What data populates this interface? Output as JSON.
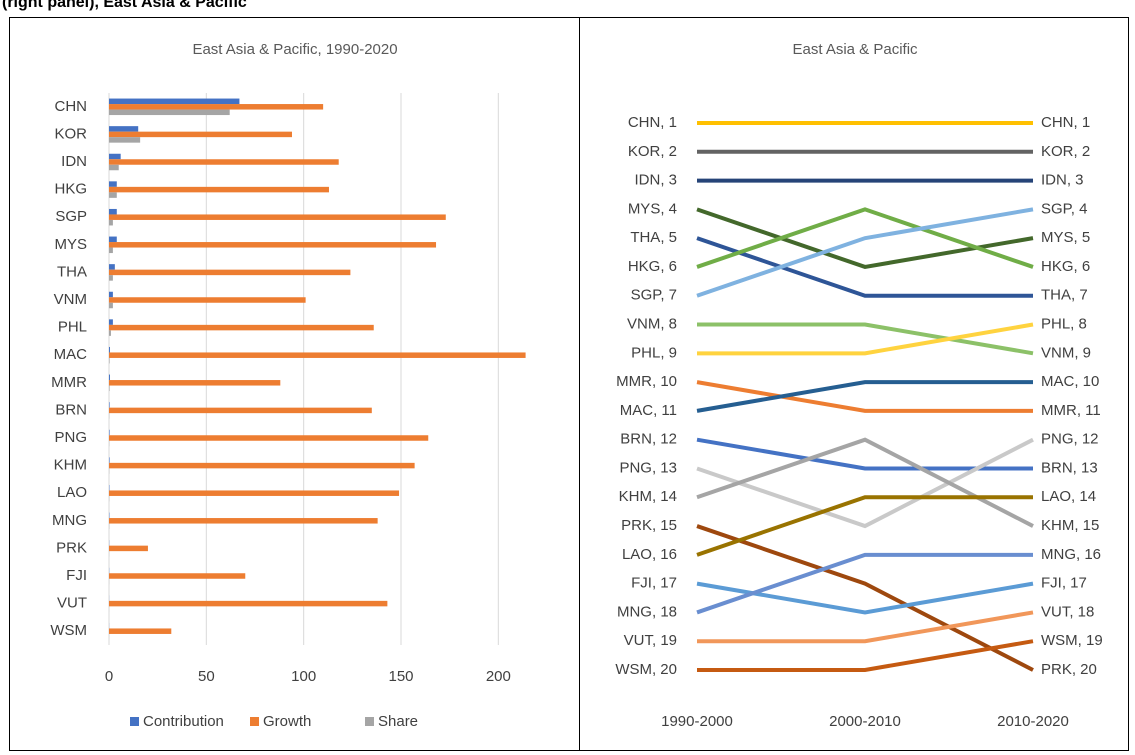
{
  "caption": "(right panel), East Asia & Pacific",
  "chart_data": [
    {
      "type": "bar",
      "orientation": "horizontal",
      "title": "East Asia & Pacific, 1990-2020",
      "categories": [
        "CHN",
        "KOR",
        "IDN",
        "HKG",
        "SGP",
        "MYS",
        "THA",
        "VNM",
        "PHL",
        "MAC",
        "MMR",
        "BRN",
        "PNG",
        "KHM",
        "LAO",
        "MNG",
        "PRK",
        "FJI",
        "VUT",
        "WSM"
      ],
      "series": [
        {
          "name": "Contribution",
          "color": "#4472C4",
          "values": [
            67,
            15,
            6,
            4,
            4,
            4,
            3,
            2,
            2,
            0.5,
            0.5,
            0.3,
            0.3,
            0.3,
            0.2,
            0.2,
            0.1,
            0.1,
            0.05,
            0.05
          ]
        },
        {
          "name": "Growth",
          "color": "#ED7D31",
          "values": [
            110,
            94,
            118,
            113,
            173,
            168,
            124,
            101,
            136,
            214,
            88,
            135,
            164,
            157,
            149,
            138,
            20,
            70,
            143,
            32
          ]
        },
        {
          "name": "Share",
          "color": "#A5A5A5",
          "values": [
            62,
            16,
            5,
            4,
            2,
            2,
            2,
            2,
            1,
            0.3,
            0.3,
            0.1,
            0.1,
            0.1,
            0.1,
            0.1,
            0.05,
            0.05,
            0.02,
            0.02
          ]
        }
      ],
      "xlim": [
        0,
        225
      ],
      "xticks": [
        0,
        50,
        100,
        150,
        200
      ],
      "grid": true,
      "legend": "bottom"
    },
    {
      "type": "line",
      "title": "East Asia & Pacific",
      "categories": [
        "1990-2000",
        "2000-2010",
        "2010-2020"
      ],
      "ylim": [
        1,
        20
      ],
      "y_inverted": true,
      "series": [
        {
          "color": "#FFC000",
          "values": [
            1,
            1,
            1
          ],
          "value_labels": [
            "CHN, 1",
            null,
            "CHN, 1"
          ]
        },
        {
          "color": "#636363",
          "values": [
            2,
            2,
            2
          ],
          "value_labels": [
            "KOR, 2",
            null,
            "KOR, 2"
          ]
        },
        {
          "color": "#264478",
          "values": [
            3,
            3,
            3
          ],
          "value_labels": [
            "IDN, 3",
            null,
            "IDN, 3"
          ]
        },
        {
          "color": "#43682B",
          "values": [
            4,
            6,
            5
          ],
          "value_labels": [
            "MYS, 4",
            null,
            "MYS, 5"
          ]
        },
        {
          "color": "#2E5597",
          "values": [
            5,
            7,
            7
          ],
          "value_labels": [
            "THA, 5",
            null,
            "THA, 7"
          ]
        },
        {
          "color": "#70AD47",
          "values": [
            6,
            4,
            6
          ],
          "value_labels": [
            "HKG, 6",
            null,
            "HKG, 6"
          ]
        },
        {
          "color": "#7FB2E0",
          "values": [
            7,
            5,
            4
          ],
          "value_labels": [
            "SGP, 7",
            null,
            "SGP, 4"
          ]
        },
        {
          "color": "#8CC168",
          "values": [
            8,
            8,
            9
          ],
          "value_labels": [
            "VNM, 8",
            null,
            "VNM, 9"
          ]
        },
        {
          "color": "#FFD33F",
          "values": [
            9,
            9,
            8
          ],
          "value_labels": [
            "PHL, 9",
            null,
            "PHL, 8"
          ]
        },
        {
          "color": "#ED7D31",
          "values": [
            10,
            11,
            11
          ],
          "value_labels": [
            "MMR, 10",
            null,
            "MMR, 11"
          ]
        },
        {
          "color": "#255E91",
          "values": [
            11,
            10,
            10
          ],
          "value_labels": [
            "MAC, 11",
            null,
            "MAC, 10"
          ]
        },
        {
          "color": "#4472C4",
          "values": [
            12,
            13,
            13
          ],
          "value_labels": [
            "BRN, 12",
            null,
            "BRN, 13"
          ]
        },
        {
          "color": "#C9C9C9",
          "values": [
            13,
            15,
            12
          ],
          "value_labels": [
            "PNG, 13",
            null,
            "PNG, 12"
          ]
        },
        {
          "color": "#A5A5A5",
          "values": [
            14,
            12,
            15
          ],
          "value_labels": [
            "KHM, 14",
            null,
            "KHM, 15"
          ]
        },
        {
          "color": "#9E480E",
          "values": [
            15,
            17,
            20
          ],
          "value_labels": [
            "PRK, 15",
            null,
            "PRK, 20"
          ]
        },
        {
          "color": "#997300",
          "values": [
            16,
            14,
            14
          ],
          "value_labels": [
            "LAO, 16",
            null,
            "LAO, 14"
          ]
        },
        {
          "color": "#5B9BD5",
          "values": [
            17,
            18,
            17
          ],
          "value_labels": [
            "FJI, 17",
            null,
            "FJI, 17"
          ]
        },
        {
          "color": "#698ED0",
          "values": [
            18,
            16,
            16
          ],
          "value_labels": [
            "MNG, 18",
            null,
            "MNG, 16"
          ]
        },
        {
          "color": "#F1975A",
          "values": [
            19,
            19,
            18
          ],
          "value_labels": [
            "VUT, 19",
            null,
            "VUT, 18"
          ]
        },
        {
          "color": "#C55A11",
          "values": [
            20,
            20,
            19
          ],
          "value_labels": [
            "WSM, 20",
            null,
            "WSM, 19"
          ]
        }
      ]
    }
  ]
}
